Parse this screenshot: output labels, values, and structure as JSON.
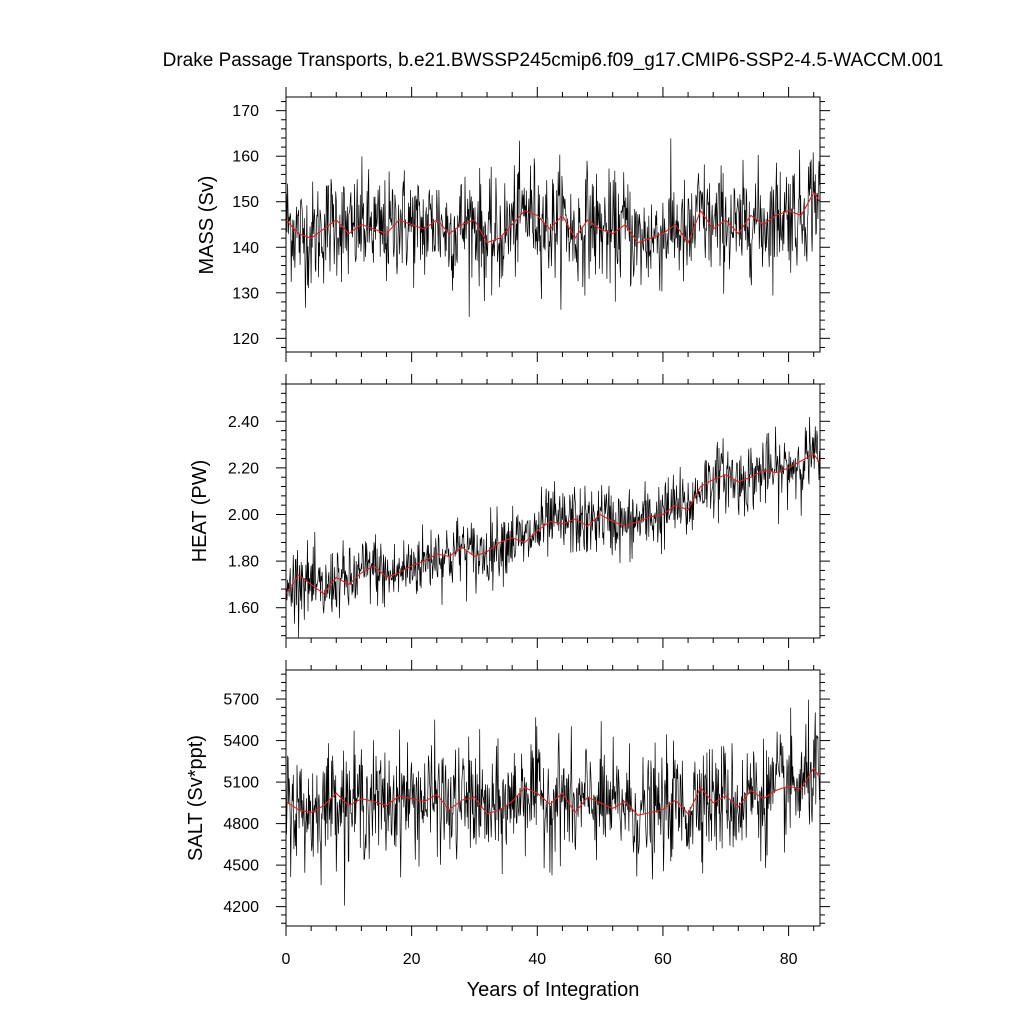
{
  "chart_data": {
    "type": "line",
    "title": "Drake Passage Transports, b.e21.BWSSP245cmip6.f09_g17.CMIP6-SSP2-4.5-WACCM.001",
    "xlabel": "Years of Integration",
    "xlim": [
      0,
      85
    ],
    "xticks": [
      0,
      20,
      40,
      60,
      80
    ],
    "xtick_labels": [
      "0",
      "20",
      "40",
      "60",
      "80"
    ],
    "colors": {
      "raw": "#000000",
      "smoothed": "#dd2222"
    },
    "panels": [
      {
        "ylabel": "MASS (Sv)",
        "ylim": [
          117,
          173
        ],
        "yticks": [
          120,
          130,
          140,
          150,
          160,
          170
        ],
        "ytick_labels": [
          "120",
          "130",
          "140",
          "150",
          "160",
          "170"
        ],
        "smoothed": {
          "x": [
            0,
            2,
            4,
            6,
            8,
            10,
            12,
            14,
            16,
            18,
            20,
            22,
            24,
            26,
            28,
            30,
            32,
            34,
            36,
            38,
            40,
            42,
            44,
            46,
            48,
            50,
            52,
            54,
            56,
            58,
            60,
            62,
            64,
            66,
            68,
            70,
            72,
            74,
            76,
            78,
            80,
            82,
            84,
            85
          ],
          "y": [
            146,
            143,
            142,
            144,
            146,
            143,
            145,
            144,
            143,
            146,
            145,
            144,
            146,
            143,
            145,
            146,
            141,
            142,
            145,
            148,
            147,
            144,
            147,
            142,
            146,
            144,
            143,
            145,
            141,
            142,
            143,
            145,
            141,
            148,
            144,
            146,
            143,
            147,
            145,
            147,
            148,
            147,
            152,
            150
          ]
        },
        "raw": {
          "mean_offset": 0.0,
          "noise_sd": 6.0,
          "min": 117,
          "max": 172
        }
      },
      {
        "ylabel": "HEAT (PW)",
        "ylim": [
          1.47,
          2.56
        ],
        "yticks": [
          1.6,
          1.8,
          2.0,
          2.2,
          2.4
        ],
        "ytick_labels": [
          "1.60",
          "1.80",
          "2.00",
          "2.20",
          "2.40"
        ],
        "smoothed": {
          "x": [
            0,
            2,
            4,
            6,
            8,
            10,
            12,
            14,
            16,
            18,
            20,
            22,
            24,
            26,
            28,
            30,
            32,
            34,
            36,
            38,
            40,
            42,
            44,
            46,
            48,
            50,
            52,
            54,
            56,
            58,
            60,
            62,
            64,
            66,
            68,
            70,
            72,
            74,
            76,
            78,
            80,
            82,
            84,
            85
          ],
          "y": [
            1.66,
            1.74,
            1.7,
            1.66,
            1.73,
            1.7,
            1.75,
            1.78,
            1.73,
            1.75,
            1.78,
            1.8,
            1.83,
            1.82,
            1.86,
            1.82,
            1.84,
            1.88,
            1.9,
            1.88,
            1.93,
            1.97,
            1.96,
            1.98,
            1.95,
            2.0,
            1.97,
            1.95,
            1.97,
            1.99,
            2.0,
            2.04,
            2.02,
            2.12,
            2.15,
            2.17,
            2.14,
            2.16,
            2.19,
            2.18,
            2.2,
            2.23,
            2.26,
            2.22
          ]
        },
        "raw": {
          "mean_offset": 0.0,
          "noise_sd": 0.075,
          "min": 1.47,
          "max": 2.55
        }
      },
      {
        "ylabel": "SALT (Sv*ppt)",
        "ylim": [
          4060,
          5910
        ],
        "yticks": [
          4200,
          4500,
          4800,
          5100,
          5400,
          5700
        ],
        "ytick_labels": [
          "4200",
          "4500",
          "4800",
          "5100",
          "5400",
          "5700"
        ],
        "smoothed": {
          "x": [
            0,
            2,
            4,
            6,
            8,
            10,
            12,
            14,
            16,
            18,
            20,
            22,
            24,
            26,
            28,
            30,
            32,
            34,
            36,
            38,
            40,
            42,
            44,
            46,
            48,
            50,
            52,
            54,
            56,
            58,
            60,
            62,
            64,
            66,
            68,
            70,
            72,
            74,
            76,
            78,
            80,
            82,
            84,
            85
          ],
          "y": [
            4960,
            4900,
            4880,
            4930,
            5020,
            4930,
            4980,
            4960,
            4930,
            5000,
            4980,
            4960,
            5010,
            4900,
            4970,
            4990,
            4870,
            4900,
            4960,
            5060,
            5020,
            4940,
            5020,
            4880,
            4990,
            4950,
            4910,
            4960,
            4860,
            4880,
            4900,
            4970,
            4870,
            5060,
            4950,
            5000,
            4920,
            5040,
            4980,
            5040,
            5070,
            5050,
            5200,
            5130
          ]
        },
        "raw": {
          "mean_offset": 0.0,
          "noise_sd": 200,
          "min": 4080,
          "max": 5890
        }
      }
    ]
  }
}
